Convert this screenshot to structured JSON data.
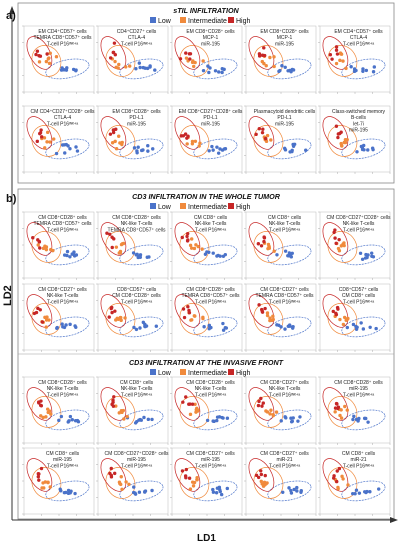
{
  "figure": {
    "panel_a": "a)",
    "panel_b": "b)",
    "y_axis_label": "LD2",
    "x_axis_label": "LD1"
  },
  "legend": {
    "items": [
      "Low",
      "Intermediate",
      "High"
    ],
    "colors": [
      "#4a72c9",
      "#f08a3c",
      "#c62626"
    ]
  },
  "sections": [
    {
      "title": "sTIL INFILTRATION",
      "show_legend": true
    },
    {
      "title": "CD3 INFILTRATION IN THE WHOLE TUMOR",
      "show_legend": true
    },
    {
      "title": "CD3 INFILTRATION AT THE INVASIVE FRONT",
      "show_legend": true
    }
  ],
  "chart_data": [
    {
      "type": "scatter",
      "section": 0,
      "row": 0,
      "col": 0,
      "labels": [
        "EM CD4⁺CD57⁺ cells",
        "TEMRA CD8⁺CD57⁺ cells",
        "T-cell P16ᴵᴺᴷ⁴ᵃ"
      ]
    },
    {
      "type": "scatter",
      "section": 0,
      "row": 0,
      "col": 1,
      "labels": [
        "CD4⁺CD27⁺ cells",
        "CTLA-4",
        "T-cell P16ᴵᴺᴷ⁴ᵃ"
      ]
    },
    {
      "type": "scatter",
      "section": 0,
      "row": 0,
      "col": 2,
      "labels": [
        "EM CD8⁺CD28⁺ cells",
        "MCP-1",
        "miR-195"
      ]
    },
    {
      "type": "scatter",
      "section": 0,
      "row": 0,
      "col": 3,
      "labels": [
        "EM CD8⁺CD28⁺ cells",
        "MCP-1",
        "miR-195"
      ]
    },
    {
      "type": "scatter",
      "section": 0,
      "row": 0,
      "col": 4,
      "labels": [
        "EM CD4⁺CD57⁺ cells",
        "CTLA-4",
        "T-cell P16ᴵᴺᴷ⁴ᵃ"
      ]
    },
    {
      "type": "scatter",
      "section": 0,
      "row": 1,
      "col": 0,
      "labels": [
        "CM CD4⁺CD27⁺CD28⁺ cells",
        "CTLA-4",
        "T-cell P16ᴵᴺᴷ⁴ᵃ"
      ]
    },
    {
      "type": "scatter",
      "section": 0,
      "row": 1,
      "col": 1,
      "labels": [
        "EM CD8⁺CD28⁺ cells",
        "PD-L1",
        "miR-195"
      ]
    },
    {
      "type": "scatter",
      "section": 0,
      "row": 1,
      "col": 2,
      "labels": [
        "EM CD8⁺CD27⁺CD28⁺ cells",
        "PD-L1",
        "miR-195"
      ]
    },
    {
      "type": "scatter",
      "section": 0,
      "row": 1,
      "col": 3,
      "labels": [
        "Plasmacytoid dendritic cells",
        "PD-L1",
        "miR-195"
      ]
    },
    {
      "type": "scatter",
      "section": 0,
      "row": 1,
      "col": 4,
      "labels": [
        "Class-switched memory",
        "B-cells",
        "let-7i",
        "miR-195"
      ]
    },
    {
      "type": "scatter",
      "section": 1,
      "row": 0,
      "col": 0,
      "labels": [
        "CM CD8⁺CD28⁺ cells",
        "TEMRA CD8⁺CD57⁺ cells",
        "T-cell P16ᴵᴺᴷ⁴ᵃ"
      ]
    },
    {
      "type": "scatter",
      "section": 1,
      "row": 0,
      "col": 1,
      "labels": [
        "CM CD8⁺CD28⁺ cells",
        "NK-like T-cells",
        "TEMRA CD8⁺CD57⁺ cells"
      ]
    },
    {
      "type": "scatter",
      "section": 1,
      "row": 0,
      "col": 2,
      "labels": [
        "CM CD8⁺ cells",
        "NK-like T-cells",
        "T-cell P16ᴵᴺᴷ⁴ᵃ"
      ]
    },
    {
      "type": "scatter",
      "section": 1,
      "row": 0,
      "col": 3,
      "labels": [
        "CM CD8⁺ cells",
        "NK-like T-cells",
        "T-cell P16ᴵᴺᴷ⁴ᵃ"
      ]
    },
    {
      "type": "scatter",
      "section": 1,
      "row": 0,
      "col": 4,
      "labels": [
        "CM CD8⁺CD27⁺CD28⁺ cells",
        "NK-like T-cells",
        "T-cell P16ᴵᴺᴷ⁴ᵃ"
      ]
    },
    {
      "type": "scatter",
      "section": 1,
      "row": 1,
      "col": 0,
      "labels": [
        "CM CD8⁺CD27⁺ cells",
        "NK-like T-cells",
        "T-cell P16ᴵᴺᴷ⁴ᵃ"
      ]
    },
    {
      "type": "scatter",
      "section": 1,
      "row": 1,
      "col": 1,
      "labels": [
        "CD8⁺CD57⁺ cells",
        "CM CD8⁺CD28⁺ cells",
        "T-cell P16ᴵᴺᴷ⁴ᵃ"
      ]
    },
    {
      "type": "scatter",
      "section": 1,
      "row": 1,
      "col": 2,
      "labels": [
        "CM CD8⁺CD28⁺ cells",
        "TEMRA CD8⁺CD57⁺ cells",
        "T-cell P16ᴵᴺᴷ⁴ᵃ"
      ]
    },
    {
      "type": "scatter",
      "section": 1,
      "row": 1,
      "col": 3,
      "labels": [
        "CM CD8⁺CD27⁺ cells",
        "TEMRA CD8⁺CD57⁺ cells",
        "T-cell P16ᴵᴺᴷ⁴ᵃ"
      ]
    },
    {
      "type": "scatter",
      "section": 1,
      "row": 1,
      "col": 4,
      "labels": [
        "CD8⁺CD57⁺ cells",
        "CM CD8⁺ cells",
        "T-cell P16ᴵᴺᴷ⁴ᵃ"
      ]
    },
    {
      "type": "scatter",
      "section": 2,
      "row": 0,
      "col": 0,
      "labels": [
        "CM CD8⁺CD28⁺ cells",
        "NK-like T-cells",
        "T-cell P16ᴵᴺᴷ⁴ᵃ"
      ]
    },
    {
      "type": "scatter",
      "section": 2,
      "row": 0,
      "col": 1,
      "labels": [
        "CM CD8⁺ cells",
        "NK-like T-cells",
        "T-cell P16ᴵᴺᴷ⁴ᵃ"
      ]
    },
    {
      "type": "scatter",
      "section": 2,
      "row": 0,
      "col": 2,
      "labels": [
        "CM CD8⁺CD28⁺ cells",
        "NK-like T-cells",
        "T-cell P16ᴵᴺᴷ⁴ᵃ"
      ]
    },
    {
      "type": "scatter",
      "section": 2,
      "row": 0,
      "col": 3,
      "labels": [
        "CM CD8⁺CD27⁺ cells",
        "NK-like T-cells",
        "T-cell P16ᴵᴺᴷ⁴ᵃ"
      ]
    },
    {
      "type": "scatter",
      "section": 2,
      "row": 0,
      "col": 4,
      "labels": [
        "CM CD8⁺CD28⁺ cells",
        "miR-195",
        "T-cell P16ᴵᴺᴷ⁴ᵃ"
      ]
    },
    {
      "type": "scatter",
      "section": 2,
      "row": 1,
      "col": 0,
      "labels": [
        "CM CD8⁺ cells",
        "miR-195",
        "T-cell P16ᴵᴺᴷ⁴ᵃ"
      ]
    },
    {
      "type": "scatter",
      "section": 2,
      "row": 1,
      "col": 1,
      "labels": [
        "CM CD8⁺CD27⁺CD28⁺ cells",
        "miR-195",
        "T-cell P16ᴵᴺᴷ⁴ᵃ"
      ]
    },
    {
      "type": "scatter",
      "section": 2,
      "row": 1,
      "col": 2,
      "labels": [
        "CM CD8⁺CD27⁺ cells",
        "miR-195",
        "T-cell P16ᴵᴺᴷ⁴ᵃ"
      ]
    },
    {
      "type": "scatter",
      "section": 2,
      "row": 1,
      "col": 3,
      "labels": [
        "CM CD8⁺CD27⁺ cells",
        "miR-21",
        "T-cell P16ᴵᴺᴷ⁴ᵃ"
      ]
    },
    {
      "type": "scatter",
      "section": 2,
      "row": 1,
      "col": 4,
      "labels": [
        "CM CD8⁺ cells",
        "miR-21",
        "T-cell P16ᴵᴺᴷ⁴ᵃ"
      ]
    }
  ]
}
